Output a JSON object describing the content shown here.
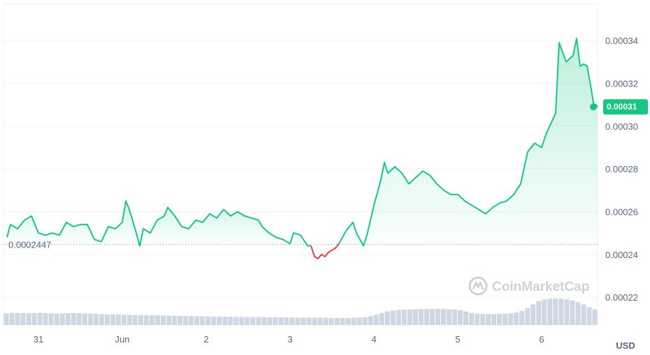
{
  "chart_data": {
    "type": "area",
    "currency": "USD",
    "watermark": "CoinMarketCap",
    "open_price_label": "0.0002447",
    "open_price": 0.0002447,
    "current_price_label": "0.00031",
    "current_price": 0.000309,
    "ylim": [
      0.000207,
      0.000357
    ],
    "y_ticks": [
      {
        "value": 0.00022,
        "label": "0.00022"
      },
      {
        "value": 0.00024,
        "label": "0.00024"
      },
      {
        "value": 0.00026,
        "label": "0.00026"
      },
      {
        "value": 0.00028,
        "label": "0.00028"
      },
      {
        "value": 0.0003,
        "label": "0.00030"
      },
      {
        "value": 0.00032,
        "label": "0.00032"
      },
      {
        "value": 0.00034,
        "label": "0.00034"
      }
    ],
    "x_range": [
      "2023-05-30T14:00",
      "2023-06-06T16:00"
    ],
    "x_ticks": [
      {
        "t": "2023-05-31",
        "label": "31"
      },
      {
        "t": "2023-06-01",
        "label": "Jun"
      },
      {
        "t": "2023-06-02",
        "label": "2"
      },
      {
        "t": "2023-06-03",
        "label": "3"
      },
      {
        "t": "2023-06-04",
        "label": "4"
      },
      {
        "t": "2023-06-05",
        "label": "5"
      },
      {
        "t": "2023-06-06",
        "label": "6"
      }
    ],
    "grid": true,
    "colors": {
      "up": "#16c784",
      "down": "#ea3943",
      "volume": "#cfd6e4",
      "grid": "#eff2f5"
    },
    "series": [
      {
        "values": [
          [
            "2023-05-30T15:00",
            0.000248
          ],
          [
            "2023-05-30T16:00",
            0.000254
          ],
          [
            "2023-05-30T18:00",
            0.000252
          ],
          [
            "2023-05-30T20:00",
            0.000256
          ],
          [
            "2023-05-30T22:00",
            0.000258
          ],
          [
            "2023-05-31T00:00",
            0.00025
          ],
          [
            "2023-05-31T02:00",
            0.000249
          ],
          [
            "2023-05-31T04:00",
            0.00025
          ],
          [
            "2023-05-31T06:00",
            0.000249
          ],
          [
            "2023-05-31T08:00",
            0.000255
          ],
          [
            "2023-05-31T10:00",
            0.000253
          ],
          [
            "2023-05-31T12:00",
            0.000254
          ],
          [
            "2023-05-31T14:00",
            0.000254
          ],
          [
            "2023-05-31T16:00",
            0.000247
          ],
          [
            "2023-05-31T18:00",
            0.000246
          ],
          [
            "2023-05-31T20:00",
            0.000253
          ],
          [
            "2023-05-31T22:00",
            0.000252
          ],
          [
            "2023-06-01T00:00",
            0.000255
          ],
          [
            "2023-06-01T01:00",
            0.000265
          ],
          [
            "2023-06-01T02:00",
            0.000261
          ],
          [
            "2023-06-01T04:00",
            0.00025
          ],
          [
            "2023-06-01T05:00",
            0.000244
          ],
          [
            "2023-06-01T06:00",
            0.000252
          ],
          [
            "2023-06-01T08:00",
            0.00025
          ],
          [
            "2023-06-01T10:00",
            0.000256
          ],
          [
            "2023-06-01T12:00",
            0.000258
          ],
          [
            "2023-06-01T13:00",
            0.000262
          ],
          [
            "2023-06-01T15:00",
            0.000258
          ],
          [
            "2023-06-01T17:00",
            0.000253
          ],
          [
            "2023-06-01T19:00",
            0.000252
          ],
          [
            "2023-06-01T21:00",
            0.000256
          ],
          [
            "2023-06-01T23:00",
            0.000255
          ],
          [
            "2023-06-02T01:00",
            0.000259
          ],
          [
            "2023-06-02T03:00",
            0.000257
          ],
          [
            "2023-06-02T05:00",
            0.000261
          ],
          [
            "2023-06-02T07:00",
            0.000258
          ],
          [
            "2023-06-02T09:00",
            0.00026
          ],
          [
            "2023-06-02T11:00",
            0.000258
          ],
          [
            "2023-06-02T13:00",
            0.000257
          ],
          [
            "2023-06-02T15:00",
            0.000256
          ],
          [
            "2023-06-02T16:00",
            0.000253
          ],
          [
            "2023-06-02T18:00",
            0.00025
          ],
          [
            "2023-06-02T20:00",
            0.000248
          ],
          [
            "2023-06-02T22:00",
            0.000247
          ],
          [
            "2023-06-03T00:00",
            0.000245
          ],
          [
            "2023-06-03T01:00",
            0.00025
          ],
          [
            "2023-06-03T03:00",
            0.000249
          ],
          [
            "2023-06-03T05:00",
            0.000244
          ],
          [
            "2023-06-03T06:00",
            0.000244
          ]
        ]
      },
      {
        "values": [
          [
            "2023-06-03T06:00",
            0.000244
          ],
          [
            "2023-06-03T07:00",
            0.000239
          ],
          [
            "2023-06-03T08:00",
            0.000238
          ],
          [
            "2023-06-03T09:00",
            0.00024
          ],
          [
            "2023-06-03T10:00",
            0.000239
          ],
          [
            "2023-06-03T11:00",
            0.000241
          ],
          [
            "2023-06-03T12:00",
            0.000242
          ],
          [
            "2023-06-03T13:00",
            0.000243
          ],
          [
            "2023-06-03T14:00",
            0.000245
          ]
        ]
      },
      {
        "values": [
          [
            "2023-06-03T14:00",
            0.000245
          ],
          [
            "2023-06-03T16:00",
            0.000251
          ],
          [
            "2023-06-03T18:00",
            0.000255
          ],
          [
            "2023-06-03T19:00",
            0.00025
          ],
          [
            "2023-06-03T20:00",
            0.000247
          ],
          [
            "2023-06-03T21:00",
            0.000244
          ],
          [
            "2023-06-03T22:00",
            0.000249
          ],
          [
            "2023-06-04T00:00",
            0.000263
          ],
          [
            "2023-06-04T02:00",
            0.000275
          ],
          [
            "2023-06-04T03:00",
            0.000283
          ],
          [
            "2023-06-04T04:00",
            0.000278
          ],
          [
            "2023-06-04T06:00",
            0.000281
          ],
          [
            "2023-06-04T08:00",
            0.000278
          ],
          [
            "2023-06-04T10:00",
            0.000273
          ],
          [
            "2023-06-04T12:00",
            0.000276
          ],
          [
            "2023-06-04T14:00",
            0.000279
          ],
          [
            "2023-06-04T16:00",
            0.000277
          ],
          [
            "2023-06-04T18:00",
            0.000273
          ],
          [
            "2023-06-04T20:00",
            0.00027
          ],
          [
            "2023-06-04T22:00",
            0.000268
          ],
          [
            "2023-06-05T00:00",
            0.000268
          ],
          [
            "2023-06-05T02:00",
            0.000265
          ],
          [
            "2023-06-05T04:00",
            0.000263
          ],
          [
            "2023-06-05T06:00",
            0.000261
          ],
          [
            "2023-06-05T08:00",
            0.000259
          ],
          [
            "2023-06-05T10:00",
            0.000262
          ],
          [
            "2023-06-05T12:00",
            0.000264
          ],
          [
            "2023-06-05T14:00",
            0.000265
          ],
          [
            "2023-06-05T16:00",
            0.000268
          ],
          [
            "2023-06-05T18:00",
            0.000273
          ],
          [
            "2023-06-05T20:00",
            0.000288
          ],
          [
            "2023-06-05T22:00",
            0.000292
          ],
          [
            "2023-06-06T00:00",
            0.00029
          ],
          [
            "2023-06-06T01:00",
            0.000295
          ],
          [
            "2023-06-06T02:00",
            0.000299
          ],
          [
            "2023-06-06T04:00",
            0.000306
          ],
          [
            "2023-06-06T05:00",
            0.000339
          ],
          [
            "2023-06-06T07:00",
            0.00033
          ],
          [
            "2023-06-06T09:00",
            0.000333
          ],
          [
            "2023-06-06T10:00",
            0.000341
          ],
          [
            "2023-06-06T11:00",
            0.000328
          ],
          [
            "2023-06-06T12:00",
            0.000329
          ],
          [
            "2023-06-06T13:00",
            0.000328
          ],
          [
            "2023-06-06T14:00",
            0.000319
          ],
          [
            "2023-06-06T15:00",
            0.000309
          ],
          [
            "2023-06-06T15:30",
            0.00031
          ],
          [
            "2023-06-06T16:00",
            0.000309
          ]
        ]
      }
    ],
    "volume": [
      0.82,
      0.85,
      0.86,
      0.84,
      0.83,
      0.85,
      0.86,
      0.84,
      0.82,
      0.8,
      0.82,
      0.83,
      0.84,
      0.82,
      0.81,
      0.8,
      0.78,
      0.76,
      0.75,
      0.74,
      0.73,
      0.72,
      0.71,
      0.7,
      0.7,
      0.69,
      0.68,
      0.68,
      0.67,
      0.66,
      0.65,
      0.64,
      0.63,
      0.62,
      0.62,
      0.61,
      0.6,
      0.6,
      0.59,
      0.58,
      0.58,
      0.57,
      0.57,
      0.56,
      0.56,
      0.55,
      0.55,
      0.55,
      0.54,
      0.54,
      0.53,
      0.53,
      0.52,
      0.52,
      0.52,
      0.51,
      0.51,
      0.51,
      0.5,
      0.5,
      0.5,
      0.5,
      0.51,
      0.52,
      0.55,
      0.62,
      0.72,
      0.85,
      0.95,
      1.02,
      1.06,
      1.09,
      1.1,
      1.11,
      1.12,
      1.12,
      1.13,
      1.13,
      1.12,
      1.11,
      1.1,
      1.05,
      0.95,
      0.85,
      0.8,
      0.78,
      0.77,
      0.77,
      0.78,
      0.8,
      0.83,
      0.88,
      1.0,
      1.2,
      1.45,
      1.68,
      1.8,
      1.85,
      1.86,
      1.84,
      1.8,
      1.72,
      1.6,
      1.45,
      1.25,
      1.1
    ]
  }
}
